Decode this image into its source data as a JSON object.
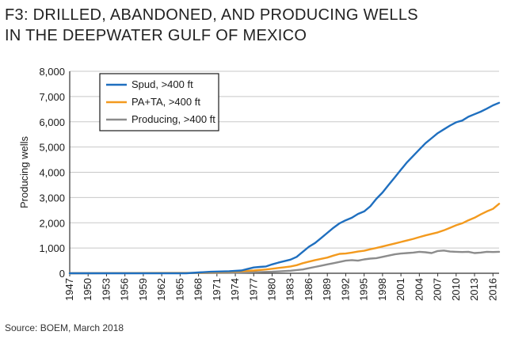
{
  "title_lines": [
    "F3: DRILLED, ABANDONED, AND PRODUCING WELLS",
    "IN THE DEEPWATER GULF OF MEXICO"
  ],
  "source": "Source: BOEM, March 2018",
  "chart_data": {
    "type": "line",
    "ylabel": "Producing wells",
    "xlabel": "",
    "ylim": [
      0,
      8000
    ],
    "yticks": [
      0,
      1000,
      2000,
      3000,
      4000,
      5000,
      6000,
      7000,
      8000
    ],
    "ytick_labels": [
      "0",
      "1,000",
      "2,000",
      "3,000",
      "4,000",
      "5,000",
      "6,000",
      "7,000",
      "8,000"
    ],
    "xlim": [
      1947,
      2017
    ],
    "xticks": [
      1947,
      1950,
      1953,
      1956,
      1959,
      1962,
      1965,
      1968,
      1971,
      1974,
      1977,
      1980,
      1983,
      1986,
      1989,
      1992,
      1995,
      1998,
      2001,
      2004,
      2007,
      2010,
      2013,
      2016
    ],
    "xtick_labels": [
      "1947",
      "1950",
      "1953",
      "1956",
      "1959",
      "1962",
      "1965",
      "1968",
      "1971",
      "1974",
      "1977",
      "1980",
      "1983",
      "1986",
      "1989",
      "1992",
      "1995",
      "1998",
      "2001",
      "2004",
      "2007",
      "2010",
      "2013",
      "2016"
    ],
    "legend_position": "top-left",
    "series": [
      {
        "name": "Spud, >400 ft",
        "color": "#1f6fbf",
        "x": [
          1947,
          1966,
          1968,
          1970,
          1973,
          1975,
          1976,
          1977,
          1978,
          1979,
          1980,
          1981,
          1982,
          1983,
          1984,
          1985,
          1986,
          1987,
          1988,
          1989,
          1990,
          1991,
          1992,
          1993,
          1994,
          1995,
          1996,
          1997,
          1998,
          1999,
          2000,
          2001,
          2002,
          2003,
          2004,
          2005,
          2006,
          2007,
          2008,
          2009,
          2010,
          2011,
          2012,
          2013,
          2014,
          2015,
          2016,
          2017
        ],
        "values": [
          0,
          0,
          30,
          60,
          80,
          110,
          170,
          230,
          250,
          270,
          350,
          420,
          480,
          540,
          650,
          850,
          1050,
          1200,
          1400,
          1600,
          1800,
          1980,
          2100,
          2200,
          2350,
          2450,
          2650,
          2950,
          3200,
          3500,
          3800,
          4100,
          4400,
          4650,
          4900,
          5150,
          5350,
          5550,
          5700,
          5850,
          5980,
          6050,
          6200,
          6300,
          6400,
          6520,
          6650,
          6750
        ]
      },
      {
        "name": "PA+TA, >400 ft",
        "color": "#f39a1e",
        "x": [
          1947,
          1968,
          1970,
          1973,
          1975,
          1977,
          1979,
          1980,
          1981,
          1982,
          1983,
          1984,
          1985,
          1986,
          1987,
          1988,
          1989,
          1990,
          1991,
          1992,
          1993,
          1994,
          1995,
          1996,
          1997,
          1998,
          1999,
          2000,
          2001,
          2002,
          2003,
          2004,
          2005,
          2006,
          2007,
          2008,
          2009,
          2010,
          2011,
          2012,
          2013,
          2014,
          2015,
          2016,
          2017
        ],
        "values": [
          0,
          20,
          40,
          60,
          80,
          110,
          150,
          180,
          210,
          240,
          270,
          320,
          400,
          460,
          520,
          570,
          620,
          700,
          770,
          780,
          820,
          860,
          890,
          950,
          1000,
          1060,
          1120,
          1180,
          1240,
          1300,
          1360,
          1430,
          1500,
          1560,
          1620,
          1700,
          1800,
          1900,
          1980,
          2100,
          2200,
          2330,
          2450,
          2550,
          2750
        ]
      },
      {
        "name": "Producing, >400 ft",
        "color": "#8c8c8c",
        "x": [
          1947,
          1968,
          1973,
          1977,
          1980,
          1983,
          1985,
          1986,
          1987,
          1988,
          1989,
          1990,
          1991,
          1992,
          1993,
          1994,
          1995,
          1996,
          1997,
          1998,
          1999,
          2000,
          2001,
          2002,
          2003,
          2004,
          2005,
          2006,
          2007,
          2008,
          2009,
          2010,
          2011,
          2012,
          2013,
          2014,
          2015,
          2016,
          2017
        ],
        "values": [
          0,
          10,
          20,
          40,
          60,
          100,
          150,
          200,
          250,
          300,
          350,
          400,
          450,
          500,
          520,
          500,
          550,
          580,
          600,
          650,
          700,
          750,
          780,
          800,
          820,
          850,
          830,
          800,
          880,
          900,
          860,
          850,
          840,
          850,
          800,
          820,
          850,
          840,
          850
        ]
      }
    ]
  }
}
